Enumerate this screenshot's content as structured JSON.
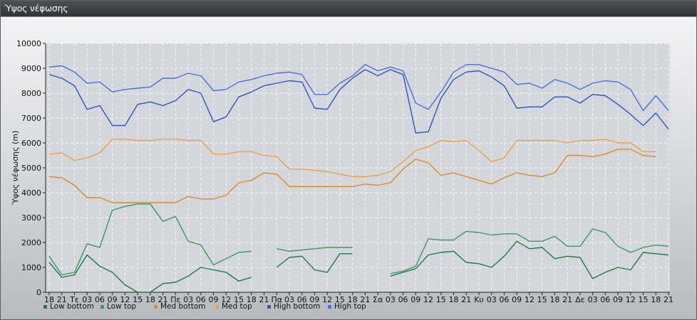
{
  "window": {
    "title": "Ύψος νέφωσης"
  },
  "chart_data": {
    "type": "line",
    "title": "",
    "xlabel": "",
    "ylabel": "Ύψος νέφωσης (m)",
    "ylim": [
      0,
      10000
    ],
    "yticks": [
      0,
      1000,
      2000,
      3000,
      4000,
      5000,
      6000,
      7000,
      8000,
      9000,
      10000
    ],
    "grid": true,
    "legend_position": "bottom-left",
    "categories": [
      "18",
      "21",
      "Τε",
      "03",
      "06",
      "09",
      "12",
      "15",
      "18",
      "21",
      "Πε",
      "03",
      "06",
      "09",
      "12",
      "15",
      "18",
      "21",
      "Πα",
      "03",
      "06",
      "09",
      "12",
      "15",
      "18",
      "21",
      "Σα",
      "03",
      "06",
      "09",
      "12",
      "15",
      "18",
      "21",
      "Κυ",
      "03",
      "06",
      "09",
      "12",
      "15",
      "18",
      "21",
      "Δε",
      "03",
      "06",
      "09",
      "12",
      "15",
      "18",
      "21"
    ],
    "series": [
      {
        "name": "Low bottom",
        "color": "#1f7a45",
        "values": [
          1200,
          600,
          700,
          1500,
          1050,
          800,
          300,
          0,
          0,
          350,
          400,
          650,
          1000,
          900,
          800,
          450,
          600,
          null,
          1000,
          1400,
          1450,
          900,
          800,
          1550,
          1550,
          null,
          null,
          650,
          800,
          950,
          1500,
          1600,
          1650,
          1200,
          1150,
          1000,
          1450,
          2050,
          1750,
          1800,
          1350,
          1450,
          1400,
          550,
          800,
          1000,
          900,
          1600,
          1550,
          1500
        ]
      },
      {
        "name": "Low top",
        "color": "#3a9a62",
        "values": [
          1450,
          700,
          800,
          1950,
          1800,
          3300,
          3450,
          3550,
          3550,
          2850,
          3050,
          2050,
          1900,
          1100,
          1350,
          1600,
          1650,
          null,
          1750,
          1650,
          1700,
          1750,
          1800,
          1800,
          1800,
          null,
          null,
          750,
          850,
          1050,
          2150,
          2100,
          2100,
          2450,
          2400,
          2300,
          2350,
          2350,
          2050,
          2050,
          2250,
          1850,
          1850,
          2550,
          2400,
          1850,
          1600,
          1800,
          1900,
          1850
        ]
      },
      {
        "name": "Med bottom",
        "color": "#e08a22",
        "values": [
          4650,
          4600,
          4300,
          3800,
          3800,
          3600,
          3600,
          3600,
          3600,
          3600,
          3600,
          3850,
          3750,
          3750,
          3900,
          4400,
          4500,
          4800,
          4750,
          4250,
          4250,
          4250,
          4250,
          4250,
          4250,
          4350,
          4300,
          4400,
          4950,
          5350,
          5200,
          4700,
          4800,
          4650,
          4500,
          4350,
          4600,
          4800,
          4700,
          4650,
          4800,
          5500,
          5500,
          5450,
          5550,
          5750,
          5750,
          5500,
          5450,
          null
        ]
      },
      {
        "name": "Med top",
        "color": "#f0a040",
        "values": [
          5550,
          5600,
          5300,
          5400,
          5600,
          6150,
          6150,
          6100,
          6100,
          6150,
          6150,
          6100,
          6100,
          5550,
          5550,
          5650,
          5650,
          5500,
          5450,
          4950,
          4950,
          4900,
          4850,
          4750,
          4650,
          4650,
          4700,
          4850,
          5250,
          5700,
          5850,
          6100,
          6050,
          6100,
          5700,
          5250,
          5400,
          6100,
          6100,
          6100,
          6100,
          6000,
          6100,
          6100,
          6150,
          6000,
          6000,
          5650,
          5650,
          null
        ]
      },
      {
        "name": "High bottom",
        "color": "#2f55c8",
        "values": [
          8750,
          8600,
          8300,
          7350,
          7500,
          6700,
          6700,
          7550,
          7650,
          7500,
          7700,
          8150,
          8000,
          6850,
          7050,
          7850,
          8050,
          8300,
          8400,
          8500,
          8450,
          7400,
          7350,
          8150,
          8600,
          8950,
          8700,
          8950,
          8750,
          6400,
          6450,
          7800,
          8550,
          8850,
          8900,
          8650,
          8300,
          7400,
          7450,
          7450,
          7850,
          7850,
          7600,
          7950,
          7900,
          7550,
          7150,
          6700,
          7200,
          6550
        ]
      },
      {
        "name": "High top",
        "color": "#4a70e0",
        "values": [
          9050,
          9100,
          8850,
          8400,
          8450,
          8050,
          8150,
          8200,
          8250,
          8600,
          8600,
          8800,
          8700,
          8100,
          8150,
          8450,
          8550,
          8700,
          8800,
          8850,
          8750,
          7950,
          7950,
          8400,
          8700,
          9150,
          8900,
          9050,
          8900,
          7600,
          7350,
          8050,
          8850,
          9150,
          9150,
          9000,
          8850,
          8350,
          8400,
          8200,
          8550,
          8400,
          8150,
          8400,
          8500,
          8450,
          8150,
          7300,
          7900,
          7300
        ]
      }
    ]
  }
}
